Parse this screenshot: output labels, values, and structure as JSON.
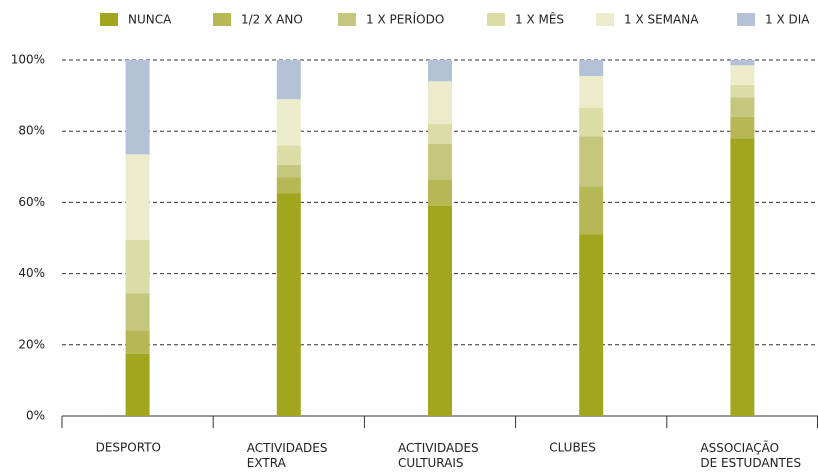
{
  "chart_data": {
    "type": "stacked_bar",
    "categories": [
      "DESPORTO",
      "ACTIVIDADES\nEXTRA",
      "ACTIVIDADES\nCULTURAIS",
      "CLUBES",
      "ASSOCIAÇÃO\nDE ESTUDANTES"
    ],
    "series": [
      {
        "name": "NUNCA",
        "color": "#a2a61e",
        "values": [
          17.5,
          62.5,
          59,
          51,
          78
        ]
      },
      {
        "name": "1/2 X ANO",
        "color": "#b5b855",
        "values": [
          6.5,
          4.5,
          7.5,
          13.5,
          6
        ]
      },
      {
        "name": "1 X PERÍODO",
        "color": "#c6c77e",
        "values": [
          10.5,
          3.5,
          10,
          14,
          5.5
        ]
      },
      {
        "name": "1 X MÊS",
        "color": "#dcdca6",
        "values": [
          15,
          5.5,
          5.5,
          8,
          3.5
        ]
      },
      {
        "name": "1 X SEMANA",
        "color": "#ececcc",
        "values": [
          24,
          13,
          12,
          9,
          5.5
        ]
      },
      {
        "name": "1 X DIA",
        "color": "#b3c2d6",
        "values": [
          26.5,
          11,
          6,
          4.5,
          1.5
        ]
      }
    ],
    "ylim": [
      0,
      100
    ],
    "yticks": [
      {
        "value": 0,
        "label": "0%"
      },
      {
        "value": 20,
        "label": "20%"
      },
      {
        "value": 40,
        "label": "40%"
      },
      {
        "value": 60,
        "label": "60%"
      },
      {
        "value": 80,
        "label": "80%"
      },
      {
        "value": 100,
        "label": "100%"
      }
    ],
    "grid": true,
    "legend": "top"
  }
}
